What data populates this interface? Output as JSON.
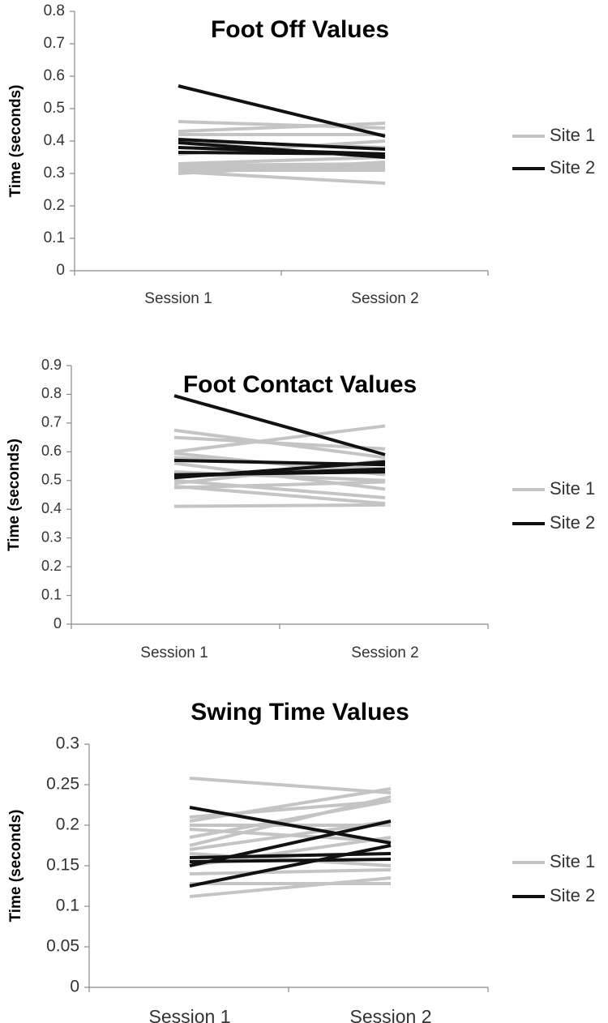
{
  "colors": {
    "site1": "#c4c4c4",
    "site2": "#111111",
    "axis": "#888888",
    "text": "#333333"
  },
  "chart_data": [
    {
      "type": "line",
      "title": "Foot Off Values",
      "ylabel": "Time (seconds)",
      "xlabel": "",
      "categories": [
        "Session 1",
        "Session 2"
      ],
      "ylim": [
        0,
        0.8
      ],
      "yticks": [
        0,
        0.1,
        0.2,
        0.3,
        0.4,
        0.5,
        0.6,
        0.7,
        0.8
      ],
      "ytick_labels": [
        "0",
        "0.1",
        "0.2",
        "0.3",
        "0.4",
        "0.5",
        "0.6",
        "0.7",
        "0.8"
      ],
      "grid": false,
      "legend": {
        "placement": "right",
        "entries": [
          "Site 1",
          "Site 2"
        ]
      },
      "series": [
        {
          "name": "Site 1",
          "color": "#c4c4c4",
          "lines": [
            [
              0.46,
              0.44
            ],
            [
              0.43,
              0.455
            ],
            [
              0.42,
              0.42
            ],
            [
              0.4,
              0.38
            ],
            [
              0.38,
              0.36
            ],
            [
              0.36,
              0.4
            ],
            [
              0.33,
              0.35
            ],
            [
              0.325,
              0.33
            ],
            [
              0.32,
              0.32
            ],
            [
              0.31,
              0.31
            ],
            [
              0.305,
              0.27
            ],
            [
              0.3,
              0.335
            ]
          ]
        },
        {
          "name": "Site 2",
          "color": "#111111",
          "lines": [
            [
              0.57,
              0.415
            ],
            [
              0.405,
              0.375
            ],
            [
              0.395,
              0.35
            ],
            [
              0.38,
              0.36
            ],
            [
              0.365,
              0.36
            ]
          ]
        }
      ]
    },
    {
      "type": "line",
      "title": "Foot Contact Values",
      "ylabel": "Time (seconds)",
      "xlabel": "",
      "categories": [
        "Session 1",
        "Session 2"
      ],
      "ylim": [
        0,
        0.9
      ],
      "yticks": [
        0,
        0.1,
        0.2,
        0.3,
        0.4,
        0.5,
        0.6,
        0.7,
        0.8,
        0.9
      ],
      "ytick_labels": [
        "0",
        "0.1",
        "0.2",
        "0.3",
        "0.4",
        "0.5",
        "0.6",
        "0.7",
        "0.8",
        "0.9"
      ],
      "grid": false,
      "legend": {
        "placement": "right",
        "entries": [
          "Site 1",
          "Site 2"
        ]
      },
      "series": [
        {
          "name": "Site 1",
          "color": "#c4c4c4",
          "lines": [
            [
              0.675,
              0.58
            ],
            [
              0.65,
              0.61
            ],
            [
              0.6,
              0.69
            ],
            [
              0.595,
              0.52
            ],
            [
              0.58,
              0.54
            ],
            [
              0.56,
              0.47
            ],
            [
              0.53,
              0.5
            ],
            [
              0.5,
              0.44
            ],
            [
              0.49,
              0.57
            ],
            [
              0.48,
              0.42
            ],
            [
              0.475,
              0.495
            ],
            [
              0.41,
              0.415
            ]
          ]
        },
        {
          "name": "Site 2",
          "color": "#111111",
          "lines": [
            [
              0.795,
              0.59
            ],
            [
              0.57,
              0.555
            ],
            [
              0.52,
              0.53
            ],
            [
              0.515,
              0.54
            ],
            [
              0.51,
              0.565
            ]
          ]
        }
      ]
    },
    {
      "type": "line",
      "title": "Swing Time Values",
      "ylabel": "Time (seconds)",
      "xlabel": "",
      "categories": [
        "Session 1",
        "Session 2"
      ],
      "ylim": [
        0,
        0.3
      ],
      "yticks": [
        0,
        0.05,
        0.1,
        0.15,
        0.2,
        0.25,
        0.3
      ],
      "ytick_labels": [
        "0",
        "0.05",
        "0.1",
        "0.15",
        "0.2",
        "0.25",
        "0.3"
      ],
      "grid": false,
      "legend": {
        "placement": "right",
        "entries": [
          "Site 1",
          "Site 2"
        ]
      },
      "series": [
        {
          "name": "Site 1",
          "color": "#c4c4c4",
          "lines": [
            [
              0.258,
              0.24
            ],
            [
              0.21,
              0.23
            ],
            [
              0.205,
              0.245
            ],
            [
              0.2,
              0.2
            ],
            [
              0.195,
              0.18
            ],
            [
              0.185,
              0.23
            ],
            [
              0.175,
              0.235
            ],
            [
              0.17,
              0.205
            ],
            [
              0.165,
              0.15
            ],
            [
              0.15,
              0.185
            ],
            [
              0.14,
              0.145
            ],
            [
              0.128,
              0.128
            ],
            [
              0.112,
              0.135
            ]
          ]
        },
        {
          "name": "Site 2",
          "color": "#111111",
          "lines": [
            [
              0.222,
              0.178
            ],
            [
              0.16,
              0.165
            ],
            [
              0.155,
              0.158
            ],
            [
              0.15,
              0.205
            ],
            [
              0.125,
              0.175
            ]
          ]
        }
      ]
    }
  ]
}
